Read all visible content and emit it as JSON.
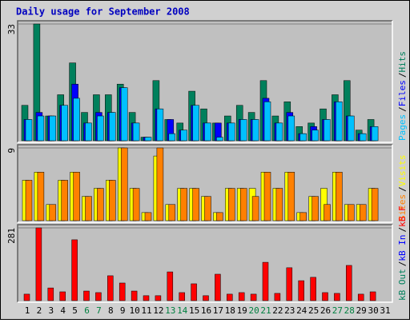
{
  "chart_data": [
    {
      "type": "bar",
      "title": "Daily usage for September 2008",
      "categories": [
        1,
        2,
        3,
        4,
        5,
        6,
        7,
        8,
        9,
        10,
        11,
        12,
        13,
        14,
        15,
        16,
        17,
        18,
        19,
        20,
        21,
        22,
        23,
        24,
        25,
        26,
        27,
        28,
        29,
        30,
        31
      ],
      "weekend_days": [
        6,
        7,
        13,
        14,
        20,
        21,
        27,
        28
      ],
      "weekend_color": "#008040",
      "ylim": [
        0,
        33
      ],
      "yticks": [
        33
      ],
      "grid": true,
      "legend_separator": "/",
      "series": [
        {
          "name": "Hits",
          "color": "#00805c",
          "values": [
            10,
            33,
            7,
            13,
            22,
            8,
            13,
            13,
            16,
            8,
            1,
            17,
            6,
            5,
            14,
            9,
            5,
            7,
            10,
            8,
            17,
            7,
            11,
            4,
            5,
            9,
            13,
            17,
            3,
            6,
            0
          ]
        },
        {
          "name": "Files",
          "color": "#0000ff",
          "values": [
            6,
            8,
            7,
            10,
            16,
            5,
            8,
            8,
            15,
            5,
            1,
            9,
            6,
            3,
            10,
            5,
            5,
            5,
            6,
            6,
            12,
            5,
            8,
            2,
            4,
            6,
            11,
            7,
            2,
            4,
            0
          ]
        },
        {
          "name": "Pages",
          "color": "#00c0ff",
          "values": [
            6,
            7,
            7,
            10,
            12,
            5,
            7,
            8,
            15,
            5,
            1,
            9,
            2,
            3,
            10,
            5,
            1,
            5,
            6,
            6,
            11,
            5,
            7,
            2,
            3,
            6,
            11,
            7,
            2,
            4,
            0
          ]
        }
      ]
    },
    {
      "type": "bar",
      "ylim": [
        0,
        9
      ],
      "yticks": [
        9
      ],
      "grid": true,
      "legend_separator": "/",
      "series": [
        {
          "name": "Visits",
          "color": "#ffff00",
          "values": [
            5,
            6,
            2,
            5,
            6,
            3,
            4,
            5,
            9,
            4,
            1,
            8,
            2,
            4,
            4,
            3,
            1,
            4,
            4,
            4,
            6,
            4,
            6,
            1,
            3,
            4,
            6,
            2,
            2,
            4,
            0
          ]
        },
        {
          "name": "Sites",
          "color": "#ff8000",
          "values": [
            5,
            6,
            2,
            5,
            6,
            3,
            4,
            5,
            9,
            4,
            1,
            9,
            2,
            4,
            4,
            3,
            1,
            4,
            4,
            3,
            6,
            4,
            6,
            1,
            3,
            2,
            6,
            2,
            2,
            4,
            0
          ]
        }
      ]
    },
    {
      "type": "bar",
      "ylim": [
        0,
        281
      ],
      "yticks": [
        281
      ],
      "grid": true,
      "legend_separator": "/",
      "series": [
        {
          "name": "kB F",
          "color": "#ff0000",
          "values": [
            25,
            281,
            49,
            34,
            235,
            37,
            31,
            96,
            68,
            37,
            19,
            19,
            111,
            31,
            65,
            19,
            102,
            25,
            31,
            25,
            148,
            28,
            127,
            77,
            90,
            31,
            28,
            136,
            25,
            34,
            0
          ]
        },
        {
          "name": "kB In",
          "color": "#0000ff",
          "values": [
            0,
            0,
            0,
            0,
            0,
            0,
            0,
            0,
            0,
            0,
            0,
            0,
            0,
            0,
            0,
            0,
            0,
            0,
            0,
            0,
            0,
            0,
            0,
            0,
            0,
            0,
            0,
            0,
            0,
            0,
            0
          ]
        },
        {
          "name": "kB Out",
          "color": "#00805c",
          "values": [
            0,
            0,
            0,
            0,
            0,
            0,
            0,
            0,
            0,
            0,
            0,
            0,
            0,
            0,
            0,
            0,
            0,
            0,
            0,
            0,
            0,
            0,
            0,
            0,
            0,
            0,
            0,
            0,
            0,
            0,
            0
          ]
        }
      ]
    }
  ]
}
